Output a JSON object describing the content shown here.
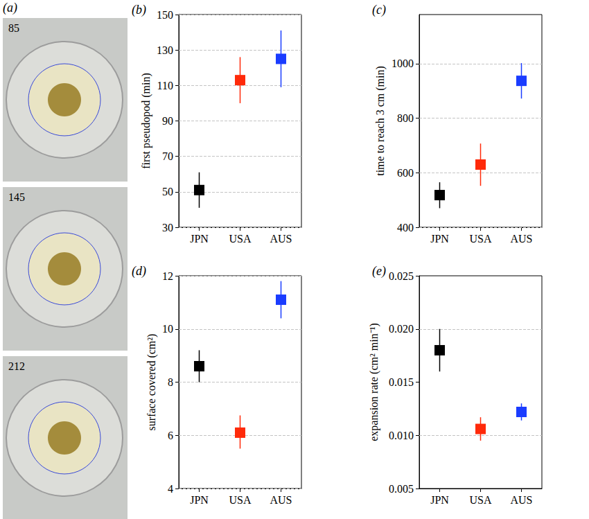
{
  "panel_a": {
    "label": "(a)",
    "images": [
      "85",
      "145",
      "212"
    ]
  },
  "chart_data": [
    {
      "panel": "(b)",
      "type": "scatter",
      "ylabel": "first pseudopod (min)",
      "categories": [
        "JPN",
        "USA",
        "AUS"
      ],
      "values": [
        51,
        113,
        125
      ],
      "error_low": [
        41,
        100,
        109
      ],
      "error_high": [
        61,
        126,
        141
      ],
      "colors": [
        "#000000",
        "#ff2a0a",
        "#1a3cff"
      ],
      "marker": "square",
      "ylim": [
        30,
        150
      ],
      "yticks": [
        30,
        50,
        70,
        90,
        110,
        130,
        150
      ],
      "grid": true
    },
    {
      "panel": "(c)",
      "type": "scatter",
      "ylabel": "time to reach 3 cm (min)",
      "categories": [
        "JPN",
        "USA",
        "AUS"
      ],
      "values": [
        518,
        630,
        937
      ],
      "error_low": [
        470,
        552,
        872
      ],
      "error_high": [
        565,
        707,
        1002
      ],
      "colors": [
        "#000000",
        "#ff2a0a",
        "#1a3cff"
      ],
      "marker": "square",
      "ylim": [
        400,
        1180
      ],
      "yticks": [
        400,
        600,
        800,
        1000
      ],
      "grid": true
    },
    {
      "panel": "(d)",
      "type": "scatter",
      "ylabel": "surface covered (cm²)",
      "categories": [
        "JPN",
        "USA",
        "AUS"
      ],
      "values": [
        8.6,
        6.1,
        11.1
      ],
      "error_low": [
        8.0,
        5.5,
        10.4
      ],
      "error_high": [
        9.2,
        6.75,
        11.8
      ],
      "colors": [
        "#000000",
        "#ff2a0a",
        "#1a3cff"
      ],
      "marker": "square",
      "ylim": [
        4,
        12
      ],
      "yticks": [
        4,
        6,
        8,
        10,
        12
      ],
      "grid": true
    },
    {
      "panel": "(e)",
      "type": "scatter",
      "ylabel": "expansion rate (cm² min⁻¹)",
      "categories": [
        "JPN",
        "USA",
        "AUS"
      ],
      "values": [
        0.018,
        0.0106,
        0.0122
      ],
      "error_low": [
        0.016,
        0.0095,
        0.0114
      ],
      "error_high": [
        0.02,
        0.0117,
        0.013
      ],
      "colors": [
        "#000000",
        "#ff2a0a",
        "#1a3cff"
      ],
      "marker": "square",
      "ylim": [
        0.005,
        0.025
      ],
      "yticks": [
        0.005,
        {
          "value": 0.01,
          "label": "0.010"
        },
        0.015,
        {
          "value": 0.02,
          "label": "0.020"
        },
        0.025
      ],
      "grid": true
    }
  ]
}
